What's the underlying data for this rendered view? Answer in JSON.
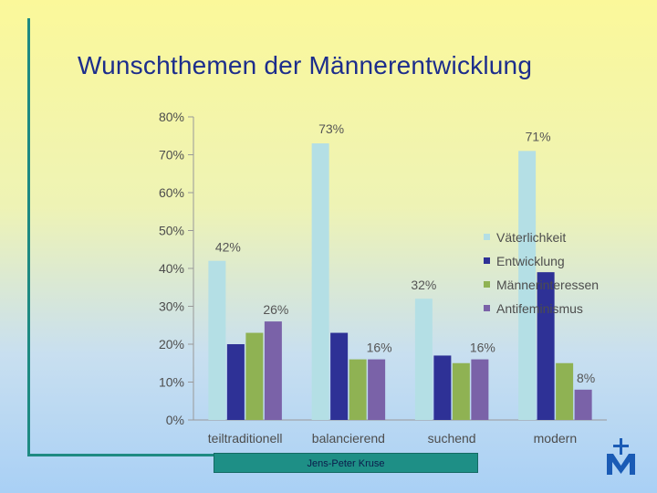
{
  "title": "Wunschthemen der Männerentwicklung",
  "footer": "Jens-Peter Kruse",
  "logo": {
    "icon": "cross-m-logo",
    "color": "#1a5bb5"
  },
  "chart_data": {
    "type": "bar",
    "categories": [
      "teiltraditionell",
      "balancierend",
      "suchend",
      "modern"
    ],
    "series": [
      {
        "name": "Väterlichkeit",
        "values": [
          42,
          73,
          32,
          71
        ],
        "color": "#b4dfe5"
      },
      {
        "name": "Entwicklung",
        "values": [
          20,
          23,
          17,
          39
        ],
        "color": "#2e3196"
      },
      {
        "name": "Männerinteressen",
        "values": [
          23,
          16,
          15,
          15
        ],
        "color": "#8fb253"
      },
      {
        "name": "Antifeminismus",
        "values": [
          26,
          16,
          16,
          8
        ],
        "color": "#7a62a8"
      }
    ],
    "data_labels": [
      {
        "text": "42%",
        "category": 0,
        "series": 0
      },
      {
        "text": "26%",
        "category": 0,
        "series": 3
      },
      {
        "text": "73%",
        "category": 1,
        "series": 0
      },
      {
        "text": "16%",
        "category": 1,
        "series": 3
      },
      {
        "text": "32%",
        "category": 2,
        "series": 0
      },
      {
        "text": "16%",
        "category": 2,
        "series": 3
      },
      {
        "text": "71%",
        "category": 3,
        "series": 0
      },
      {
        "text": "8%",
        "category": 3,
        "series": 3
      }
    ],
    "ylim": [
      0,
      80
    ],
    "yticks": [
      "0%",
      "10%",
      "20%",
      "30%",
      "40%",
      "50%",
      "60%",
      "70%",
      "80%"
    ],
    "xlabel": "",
    "ylabel": "",
    "legend_position": "right"
  }
}
